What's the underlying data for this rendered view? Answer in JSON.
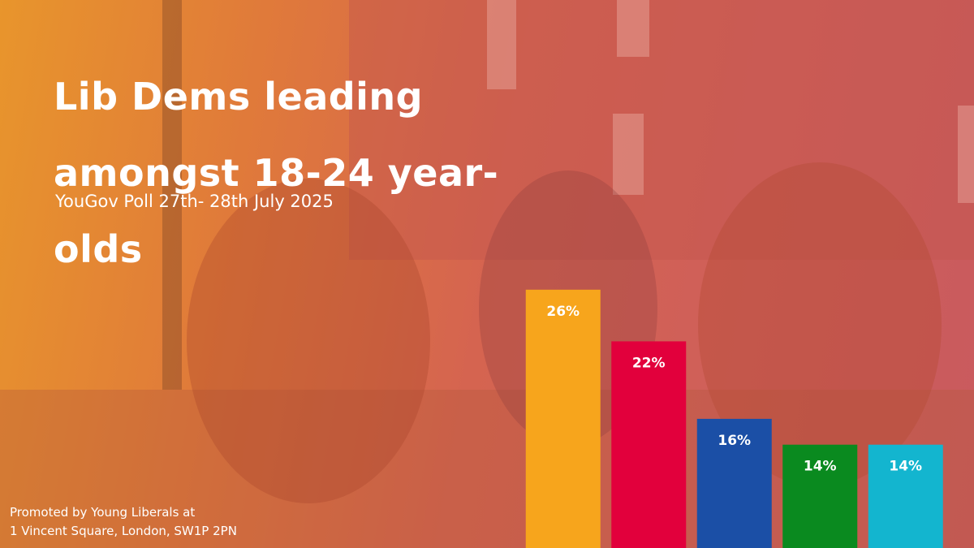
{
  "chart_data": {
    "type": "bar",
    "title": "Lib Dems leading amongst 18-24 year-olds",
    "subtitle": "YouGov Poll 27th- 28th July 2025",
    "footer": [
      "Promoted by Young Liberals at",
      "1 Vincent Square, London, SW1P 2PN"
    ],
    "categories": [
      null,
      null,
      null,
      null,
      null
    ],
    "values": [
      26,
      22,
      16,
      14,
      14
    ],
    "value_labels": [
      "26%",
      "22%",
      "16%",
      "14%",
      "14%"
    ],
    "colors": [
      "#f7a51c",
      "#e2003c",
      "#1b4fa6",
      "#0a8a1f",
      "#13b5cf"
    ],
    "ylim": [
      6,
      28
    ]
  }
}
